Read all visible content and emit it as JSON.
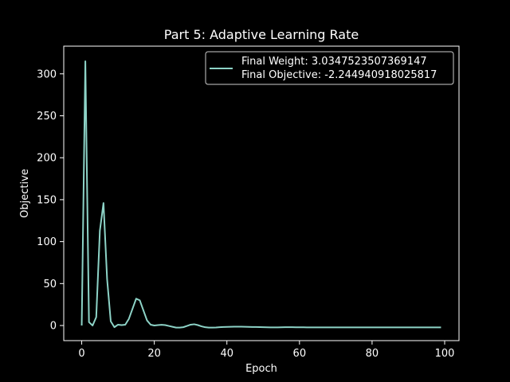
{
  "chart_data": {
    "type": "line",
    "title": "Part 5: Adaptive Learning Rate",
    "xlabel": "Epoch",
    "ylabel": "Objective",
    "xlim": [
      -4.95,
      103.95
    ],
    "ylim": [
      -18,
      333
    ],
    "xticks": [
      0,
      20,
      40,
      60,
      80,
      100
    ],
    "yticks": [
      0,
      50,
      100,
      150,
      200,
      250,
      300
    ],
    "grid": false,
    "legend_position": "top-right",
    "legend": [
      "Final Weight: 3.0347523507369147",
      "Final Objective: -2.244940918025817"
    ],
    "colors": {
      "background": "#000000",
      "foreground": "#ffffff",
      "line": "#8dd3c7"
    },
    "series": [
      {
        "x": [
          0,
          1,
          2,
          3,
          4,
          5,
          6,
          7,
          8,
          9,
          10,
          11,
          12,
          13,
          14,
          15,
          16,
          17,
          18,
          19,
          20,
          21,
          22,
          23,
          24,
          25,
          26,
          27,
          28,
          29,
          30,
          31,
          32,
          33,
          34,
          35,
          36,
          37,
          38,
          39,
          40,
          41,
          42,
          43,
          44,
          45,
          46,
          47,
          48,
          49,
          50,
          51,
          52,
          53,
          54,
          55,
          56,
          57,
          58,
          59,
          60,
          61,
          62,
          63,
          64,
          65,
          66,
          67,
          68,
          69,
          70,
          71,
          72,
          73,
          74,
          75,
          76,
          77,
          78,
          79,
          80,
          81,
          82,
          83,
          84,
          85,
          86,
          87,
          88,
          89,
          90,
          91,
          92,
          93,
          94,
          95,
          96,
          97,
          98,
          99
        ],
        "values": [
          0,
          315,
          4,
          0,
          10,
          113,
          146,
          55,
          5,
          -2,
          1,
          0.5,
          1,
          8,
          20,
          32,
          30,
          18,
          6,
          1,
          0,
          0.5,
          0.8,
          0.5,
          -0.5,
          -1.5,
          -2.5,
          -2.5,
          -2,
          -0.5,
          1,
          1.5,
          0.5,
          -1,
          -2,
          -2.5,
          -2.5,
          -2.3,
          -2,
          -1.8,
          -1.6,
          -1.5,
          -1.4,
          -1.4,
          -1.4,
          -1.5,
          -1.6,
          -1.7,
          -1.8,
          -1.9,
          -2,
          -2.1,
          -2.2,
          -2.2,
          -2.2,
          -2.1,
          -2,
          -2,
          -2,
          -2.1,
          -2.1,
          -2.1,
          -2.2,
          -2.2,
          -2.2,
          -2.2,
          -2.2,
          -2.2,
          -2.2,
          -2.2,
          -2.2,
          -2.2,
          -2.2,
          -2.2,
          -2.2,
          -2.2,
          -2.2,
          -2.2,
          -2.2,
          -2.2,
          -2.2,
          -2.2,
          -2.2,
          -2.2,
          -2.2,
          -2.2,
          -2.2,
          -2.2,
          -2.2,
          -2.2,
          -2.2,
          -2.2,
          -2.2,
          -2.2,
          -2.2,
          -2.2,
          -2.2,
          -2.2,
          -2.2,
          -2.245
        ]
      }
    ]
  }
}
